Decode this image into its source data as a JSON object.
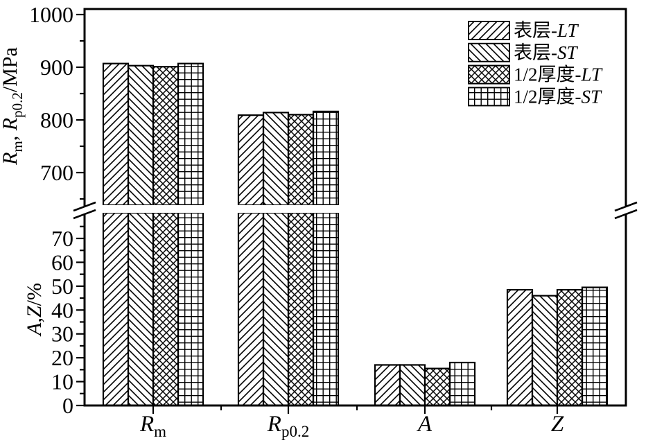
{
  "figure": {
    "background": "#ffffff",
    "ink_color": "#000000"
  },
  "chart_data": {
    "type": "bar",
    "title": "",
    "broken_axis": true,
    "grid": false,
    "legend_position": "top-right-inside",
    "categories": [
      "Rm",
      "Rp0.2",
      "A",
      "Z"
    ],
    "category_label_parts": [
      [
        {
          "t": "R",
          "i": 1
        },
        {
          "t": "m",
          "sub": 1
        }
      ],
      [
        {
          "t": "R",
          "i": 1
        },
        {
          "t": "p0.2",
          "sub": 1
        }
      ],
      [
        {
          "t": "A",
          "i": 1
        }
      ],
      [
        {
          "t": "Z",
          "i": 1
        }
      ]
    ],
    "series": [
      {
        "label": "表层-LT",
        "label_cjk": "表层",
        "label_latin": "LT",
        "hatch": "diag-forward",
        "values": [
          907,
          809,
          17,
          48.5
        ]
      },
      {
        "label": "表层-ST",
        "label_cjk": "表层",
        "label_latin": "ST",
        "hatch": "diag-back",
        "values": [
          903,
          814,
          17,
          46
        ]
      },
      {
        "label": "1/2厚度-LT",
        "label_cjk": "1/2厚度",
        "label_latin": "LT",
        "hatch": "crosshatch",
        "values": [
          901,
          810,
          15.5,
          48.5
        ]
      },
      {
        "label": "1/2厚度-ST",
        "label_cjk": "1/2厚度",
        "label_latin": "ST",
        "hatch": "grid",
        "values": [
          907,
          816,
          18,
          49.5
        ]
      }
    ],
    "top_axis": {
      "label": "Rm, Rp0.2/MPa",
      "label_parts": [
        {
          "t": "R",
          "i": 1
        },
        {
          "t": "m",
          "sub": 1
        },
        {
          "t": ", "
        },
        {
          "t": "R",
          "i": 1
        },
        {
          "t": "p0.2",
          "sub": 1
        },
        {
          "t": "/MPa"
        }
      ],
      "units": "MPa",
      "ticks": [
        1000,
        900,
        800,
        700
      ],
      "minor_ticks": [
        950,
        850,
        750,
        650
      ],
      "range_shown": [
        640,
        1010
      ],
      "applies_to_categories": [
        "Rm",
        "Rp0.2"
      ]
    },
    "bottom_axis": {
      "label": "A,Z/%",
      "label_parts": [
        {
          "t": "A",
          "i": 1
        },
        {
          "t": ","
        },
        {
          "t": "Z",
          "i": 1
        },
        {
          "t": "/%"
        }
      ],
      "units": "%",
      "ticks": [
        70,
        60,
        50,
        40,
        30,
        20,
        10,
        0
      ],
      "minor_ticks": [
        75,
        65,
        55,
        45,
        35,
        25,
        15,
        5
      ],
      "range_shown": [
        0,
        81
      ],
      "applies_to_categories": [
        "A",
        "Z"
      ]
    },
    "colors": {
      "stroke": "#000000",
      "bar_fill_background": "#ffffff"
    }
  }
}
